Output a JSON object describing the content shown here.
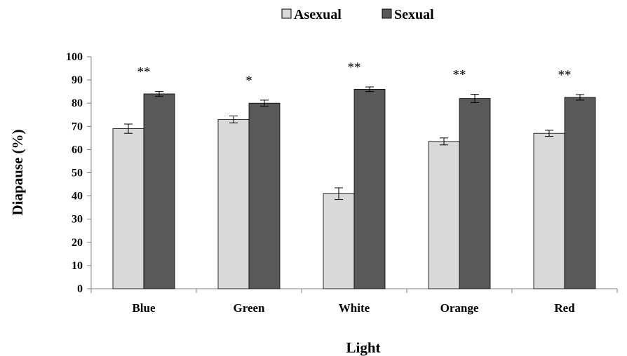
{
  "chart_data": {
    "type": "bar",
    "title": "",
    "xlabel": "Light",
    "ylabel": "Diapause (%)",
    "ylim": [
      0,
      100
    ],
    "yticks": [
      "0",
      "10",
      "20",
      "30",
      "40",
      "50",
      "60",
      "70",
      "80",
      "90",
      "100"
    ],
    "categories": [
      "Blue",
      "Green",
      "White",
      "Orange",
      "Red"
    ],
    "series": [
      {
        "name": "Asexual",
        "color": "#d9d9d9",
        "values": [
          69,
          73,
          41,
          63.5,
          67
        ],
        "errors": [
          2,
          1.5,
          2.5,
          1.5,
          1.3
        ]
      },
      {
        "name": "Sexual",
        "color": "#595959",
        "values": [
          84,
          80,
          86,
          82,
          82.5
        ],
        "errors": [
          1,
          1.3,
          1,
          1.8,
          1.2
        ]
      }
    ],
    "significance": [
      "**",
      "*",
      "**",
      "**",
      "**"
    ],
    "legend": {
      "position": "top-center",
      "entries": [
        "Asexual",
        "Sexual"
      ]
    },
    "grid": false
  }
}
